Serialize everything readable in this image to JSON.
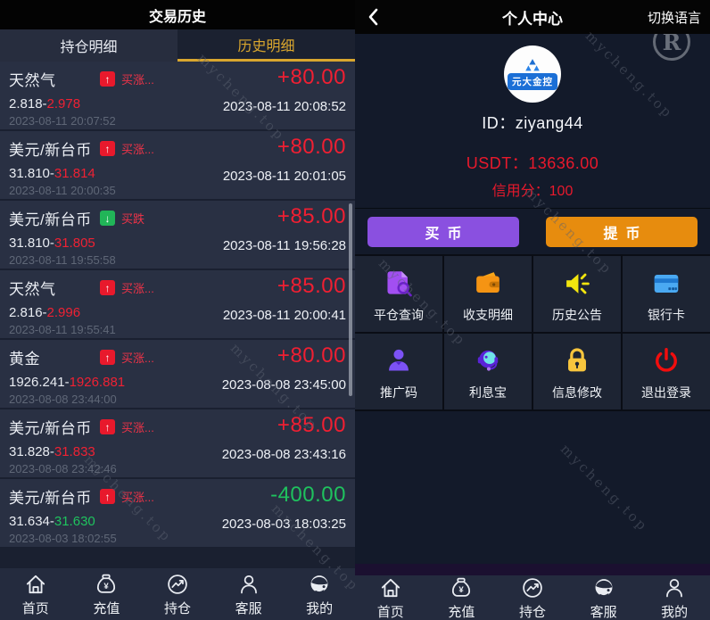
{
  "left_panel": {
    "title": "交易历史",
    "tabs": [
      {
        "key": "positions",
        "label": "持仓明细",
        "active": false
      },
      {
        "key": "history",
        "label": "历史明细",
        "active": true
      }
    ],
    "rows": [
      {
        "symbol": "天然气",
        "direction": "up",
        "direction_label": "买涨...",
        "profit": "+80.00",
        "open_price": "2.818-",
        "close_price": "2.978",
        "close_time": "2023-08-11 20:08:52",
        "open_time": "2023-08-11 20:07:52"
      },
      {
        "symbol": "美元/新台币",
        "direction": "up",
        "direction_label": "买涨...",
        "profit": "+80.00",
        "open_price": "31.810-",
        "close_price": "31.814",
        "close_time": "2023-08-11 20:01:05",
        "open_time": "2023-08-11 20:00:35"
      },
      {
        "symbol": "美元/新台币",
        "direction": "down",
        "direction_label": "买跌",
        "profit": "+85.00",
        "open_price": "31.810-",
        "close_price": "31.805",
        "close_time": "2023-08-11 19:56:28",
        "open_time": "2023-08-11 19:55:58"
      },
      {
        "symbol": "天然气",
        "direction": "up",
        "direction_label": "买涨...",
        "profit": "+85.00",
        "open_price": "2.816-",
        "close_price": "2.996",
        "close_time": "2023-08-11 20:00:41",
        "open_time": "2023-08-11 19:55:41"
      },
      {
        "symbol": "黄金",
        "direction": "up",
        "direction_label": "买涨...",
        "profit": "+80.00",
        "open_price": "1926.241-",
        "close_price": "1926.881",
        "close_time": "2023-08-08 23:45:00",
        "open_time": "2023-08-08 23:44:00"
      },
      {
        "symbol": "美元/新台币",
        "direction": "up",
        "direction_label": "买涨...",
        "profit": "+85.00",
        "open_price": "31.828-",
        "close_price": "31.833",
        "close_time": "2023-08-08 23:43:16",
        "open_time": "2023-08-08 23:42:46"
      },
      {
        "symbol": "美元/新台币",
        "direction": "up",
        "direction_label": "买涨...",
        "profit": "-400.00",
        "open_price": "31.634-",
        "close_price": "31.630",
        "close_time": "2023-08-03 18:03:25",
        "open_time": "2023-08-03 18:02:55"
      }
    ],
    "nav": [
      {
        "key": "home",
        "icon": "home",
        "label": "首页"
      },
      {
        "key": "recharge",
        "icon": "moneybag",
        "label": "充值"
      },
      {
        "key": "positions",
        "icon": "chart",
        "label": "持仓"
      },
      {
        "key": "service",
        "icon": "person",
        "label": "客服"
      },
      {
        "key": "mine",
        "icon": "headset",
        "label": "我的"
      }
    ]
  },
  "right_panel": {
    "title": "个人中心",
    "lang_switch": "切换语言",
    "avatar_brand": "元大金控",
    "user_id": "ID：ziyang44",
    "usdt_line": "USDT：13636.00",
    "credit_line": "信用分：100",
    "buttons": [
      {
        "key": "buy",
        "label": "买币"
      },
      {
        "key": "withdraw",
        "label": "提币"
      }
    ],
    "grid": [
      {
        "key": "close-query",
        "icon": "doc-search",
        "label": "平仓查询"
      },
      {
        "key": "bill-detail",
        "icon": "wallet",
        "label": "收支明细"
      },
      {
        "key": "history-notice",
        "icon": "speaker",
        "label": "历史公告"
      },
      {
        "key": "bank-card",
        "icon": "bank-card",
        "label": "银行卡"
      },
      {
        "key": "promo-code",
        "icon": "person-badge",
        "label": "推广码"
      },
      {
        "key": "interest-treasure",
        "icon": "headset-coin",
        "label": "利息宝"
      },
      {
        "key": "info-edit",
        "icon": "lock",
        "label": "信息修改"
      },
      {
        "key": "logout",
        "icon": "power",
        "label": "退出登录"
      }
    ],
    "nav": [
      {
        "key": "home",
        "icon": "home",
        "label": "首页"
      },
      {
        "key": "recharge",
        "icon": "moneybag",
        "label": "充值"
      },
      {
        "key": "positions",
        "icon": "chart",
        "label": "持仓"
      },
      {
        "key": "service",
        "icon": "headset",
        "label": "客服"
      },
      {
        "key": "mine",
        "icon": "person",
        "label": "我的"
      }
    ]
  },
  "watermark": {
    "text": "mycheng.top",
    "symbol": "R"
  },
  "colors": {
    "tab_gold": "#d9a62e",
    "profit_red": "#f01f32",
    "profit_green": "#1fc25e",
    "usdt_red": "#e8192c",
    "buy_purple": "#8a50e0",
    "withdraw_orange": "#e78c0e"
  }
}
